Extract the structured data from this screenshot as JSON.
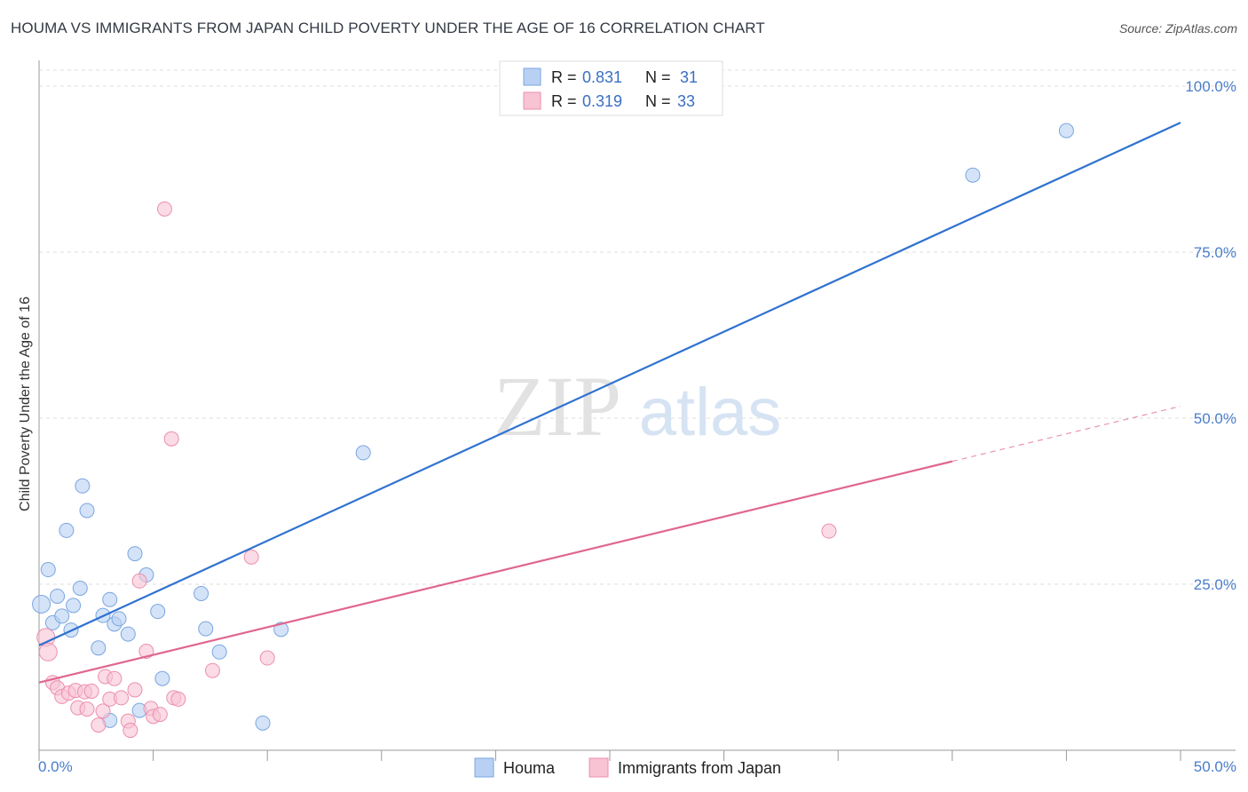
{
  "header": {
    "title": "HOUMA VS IMMIGRANTS FROM JAPAN CHILD POVERTY UNDER THE AGE OF 16 CORRELATION CHART",
    "source": "Source: ZipAtlas.com"
  },
  "watermark": {
    "part1": "ZIP",
    "part2": "atlas"
  },
  "colors": {
    "houma_fill": "#b8d1f3",
    "houma_stroke": "#7aa6e0",
    "houma_line": "#2f72d0",
    "japan_fill": "#f8c3d3",
    "japan_stroke": "#eb8fae",
    "japan_line": "#e0668f",
    "tick_text": "#4a7dc9",
    "grid": "#dddddd"
  },
  "legend_top": {
    "rows": [
      {
        "r_label": "R = ",
        "r_value": "0.831",
        "n_label": "N = ",
        "n_value": "31"
      },
      {
        "r_label": "R = ",
        "r_value": "0.319",
        "n_label": "N = ",
        "n_value": "33"
      }
    ]
  },
  "legend_bottom": {
    "items": [
      "Houma",
      "Immigrants from Japan"
    ]
  },
  "chart_data": {
    "type": "scatter",
    "title": "HOUMA VS IMMIGRANTS FROM JAPAN CHILD POVERTY UNDER THE AGE OF 16 CORRELATION CHART",
    "ylabel": "Child Poverty Under the Age of 16",
    "xlabel": "",
    "xlim": [
      0,
      50
    ],
    "ylim": [
      0,
      100
    ],
    "x_ticks": [
      "0.0%",
      "50.0%"
    ],
    "y_ticks": [
      {
        "value": 25,
        "label": "25.0%"
      },
      {
        "value": 50,
        "label": "50.0%"
      },
      {
        "value": 75,
        "label": "75.0%"
      },
      {
        "value": 100,
        "label": "100.0%"
      }
    ],
    "grid": true,
    "legend_position": "top-center",
    "series": [
      {
        "name": "Houma",
        "r": 0.831,
        "n": 31,
        "trend": {
          "x0": 0,
          "y0": 15.8,
          "x1": 50,
          "y1": 94.5
        },
        "points": [
          [
            0.1,
            22.0
          ],
          [
            0.4,
            27.2
          ],
          [
            0.6,
            19.2
          ],
          [
            0.8,
            23.2
          ],
          [
            1.0,
            20.2
          ],
          [
            1.2,
            33.1
          ],
          [
            1.4,
            18.1
          ],
          [
            1.5,
            21.8
          ],
          [
            1.8,
            24.4
          ],
          [
            1.9,
            39.8
          ],
          [
            2.1,
            36.1
          ],
          [
            2.6,
            15.4
          ],
          [
            2.8,
            20.3
          ],
          [
            3.1,
            22.7
          ],
          [
            3.3,
            19.0
          ],
          [
            3.5,
            19.8
          ],
          [
            3.9,
            17.5
          ],
          [
            4.2,
            29.6
          ],
          [
            4.7,
            26.4
          ],
          [
            5.2,
            20.9
          ],
          [
            5.4,
            10.8
          ],
          [
            7.1,
            23.6
          ],
          [
            7.3,
            18.3
          ],
          [
            7.9,
            14.8
          ],
          [
            10.6,
            18.2
          ],
          [
            14.2,
            44.8
          ],
          [
            9.8,
            4.1
          ],
          [
            3.1,
            4.5
          ],
          [
            4.4,
            6.0
          ],
          [
            40.9,
            86.6
          ],
          [
            45.0,
            93.3
          ]
        ]
      },
      {
        "name": "Immigrants from Japan",
        "r": 0.319,
        "n": 33,
        "trend": {
          "x0": 0,
          "y0": 10.2,
          "x1": 40,
          "y1": 43.5
        },
        "trend_extension": {
          "x0": 40,
          "y0": 43.5,
          "x1": 50,
          "y1": 51.8
        },
        "points": [
          [
            0.3,
            17.0
          ],
          [
            0.4,
            14.8
          ],
          [
            0.6,
            10.2
          ],
          [
            0.8,
            9.4
          ],
          [
            1.0,
            8.1
          ],
          [
            1.3,
            8.6
          ],
          [
            1.6,
            9.0
          ],
          [
            1.7,
            6.4
          ],
          [
            2.0,
            8.8
          ],
          [
            2.1,
            6.2
          ],
          [
            2.3,
            8.9
          ],
          [
            2.6,
            3.8
          ],
          [
            2.8,
            5.9
          ],
          [
            2.9,
            11.1
          ],
          [
            3.1,
            7.7
          ],
          [
            3.3,
            10.8
          ],
          [
            3.6,
            7.9
          ],
          [
            3.9,
            4.4
          ],
          [
            4.0,
            3.0
          ],
          [
            4.2,
            9.1
          ],
          [
            4.4,
            25.5
          ],
          [
            4.7,
            14.9
          ],
          [
            4.9,
            6.3
          ],
          [
            5.0,
            5.1
          ],
          [
            5.3,
            5.4
          ],
          [
            5.5,
            81.5
          ],
          [
            5.8,
            46.9
          ],
          [
            5.9,
            7.9
          ],
          [
            6.1,
            7.7
          ],
          [
            7.6,
            12.0
          ],
          [
            9.3,
            29.1
          ],
          [
            10.0,
            13.9
          ],
          [
            34.6,
            33.0
          ]
        ]
      }
    ]
  }
}
